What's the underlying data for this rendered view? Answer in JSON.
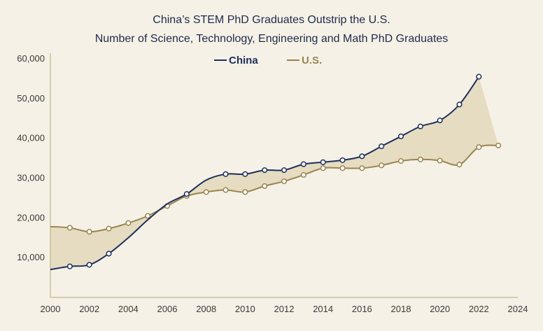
{
  "chart_data": {
    "type": "line",
    "title": "China’s STEM PhD Graduates Outstrip the U.S.",
    "subtitle": "Number of Science, Technology, Engineering and Math PhD Graduates",
    "xlabel": "",
    "ylabel": "",
    "xlim": [
      2000,
      2024
    ],
    "ylim": [
      0,
      60000
    ],
    "x_ticks": [
      "2000",
      "2002",
      "2004",
      "2006",
      "2008",
      "2010",
      "2012",
      "2014",
      "2016",
      "2018",
      "2020",
      "2022",
      "2024"
    ],
    "y_ticks": [
      "10,000",
      "20,000",
      "30,000",
      "40,000",
      "50,000",
      "60,000"
    ],
    "y_tick_values": [
      10000,
      20000,
      30000,
      40000,
      50000,
      60000
    ],
    "x_tick_values": [
      2000,
      2002,
      2004,
      2006,
      2008,
      2010,
      2012,
      2014,
      2016,
      2018,
      2020,
      2022,
      2024
    ],
    "grid": false,
    "legend_position": "top-center",
    "fill_between": true,
    "fill_color": "#e3d9bd",
    "series": [
      {
        "name": "China",
        "color": "#1e2f5c",
        "x": [
          2000,
          2001,
          2002,
          2003,
          2004,
          2005,
          2006,
          2007,
          2008,
          2009,
          2010,
          2011,
          2012,
          2013,
          2014,
          2015,
          2016,
          2017,
          2018,
          2019,
          2020,
          2021,
          2022
        ],
        "values": [
          7000,
          7800,
          8200,
          11000,
          15000,
          19500,
          23500,
          26000,
          29500,
          31000,
          31000,
          32000,
          32000,
          33500,
          34000,
          34500,
          35500,
          38000,
          40500,
          43000,
          44500,
          48500,
          55500
        ],
        "marker_x": [
          2001,
          2002,
          2003,
          2007,
          2009,
          2010,
          2011,
          2012,
          2013,
          2014,
          2015,
          2016,
          2017,
          2018,
          2019,
          2020,
          2021,
          2022
        ],
        "marker_values": [
          7800,
          8200,
          11000,
          26000,
          31000,
          31000,
          32000,
          32000,
          33500,
          34000,
          34500,
          35500,
          38000,
          40500,
          43000,
          44500,
          48500,
          55500
        ]
      },
      {
        "name": "U.S.",
        "color": "#9a8450",
        "x": [
          2000,
          2001,
          2002,
          2003,
          2004,
          2005,
          2006,
          2007,
          2008,
          2009,
          2010,
          2011,
          2012,
          2013,
          2014,
          2015,
          2016,
          2017,
          2018,
          2019,
          2020,
          2021,
          2022,
          2023
        ],
        "values": [
          17800,
          17500,
          16500,
          17300,
          18700,
          20500,
          23000,
          25500,
          26500,
          27000,
          26500,
          28000,
          29200,
          30800,
          32500,
          32500,
          32500,
          33200,
          34300,
          34700,
          34400,
          33400,
          37800,
          38200
        ],
        "marker_x": [
          2001,
          2002,
          2003,
          2004,
          2005,
          2006,
          2007,
          2008,
          2009,
          2010,
          2011,
          2012,
          2013,
          2014,
          2015,
          2016,
          2017,
          2018,
          2019,
          2020,
          2021,
          2022,
          2023
        ],
        "marker_values": [
          17500,
          16500,
          17300,
          18700,
          20500,
          23000,
          25500,
          26500,
          27000,
          26500,
          28000,
          29200,
          30800,
          32500,
          32500,
          32500,
          33200,
          34300,
          34700,
          34400,
          33400,
          37800,
          38200
        ]
      }
    ]
  }
}
